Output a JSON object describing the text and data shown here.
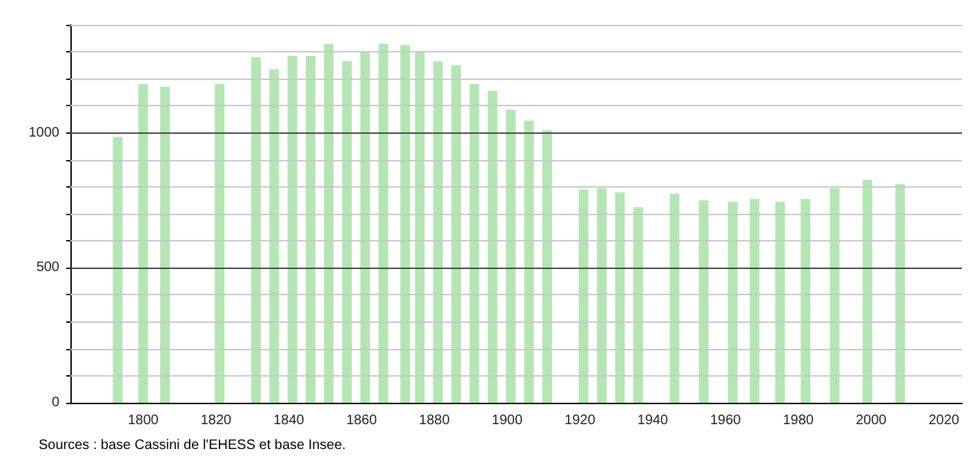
{
  "chart_data": {
    "type": "bar",
    "color": "#b3e6b3",
    "x": [
      1793,
      1800,
      1806,
      1821,
      1831,
      1836,
      1841,
      1846,
      1851,
      1856,
      1861,
      1866,
      1872,
      1876,
      1881,
      1886,
      1891,
      1896,
      1901,
      1906,
      1911,
      1921,
      1926,
      1931,
      1936,
      1946,
      1954,
      1962,
      1968,
      1975,
      1982,
      1990,
      1999,
      2008
    ],
    "values": [
      985,
      1180,
      1170,
      1180,
      1280,
      1235,
      1285,
      1285,
      1330,
      1265,
      1300,
      1330,
      1325,
      1300,
      1265,
      1250,
      1180,
      1155,
      1085,
      1045,
      1010,
      790,
      795,
      780,
      725,
      775,
      750,
      745,
      755,
      745,
      755,
      795,
      825,
      810
    ],
    "xlim": [
      1780,
      2025
    ],
    "xticks": [
      1800,
      1820,
      1840,
      1860,
      1880,
      1900,
      1920,
      1940,
      1960,
      1980,
      2000,
      2020
    ],
    "ylim": [
      0,
      1400
    ],
    "yticks": [
      0,
      {
        "value": 100,
        "label": null
      },
      {
        "value": 200,
        "label": null
      },
      {
        "value": 300,
        "label": null
      },
      {
        "value": 400,
        "label": null
      },
      500,
      {
        "value": 600,
        "label": null
      },
      {
        "value": 700,
        "label": null
      },
      {
        "value": 800,
        "label": null
      },
      {
        "value": 900,
        "label": null
      },
      1000,
      {
        "value": 1100,
        "label": null
      },
      {
        "value": 1200,
        "label": null
      },
      {
        "value": 1300,
        "label": null
      },
      {
        "value": 1400,
        "label": null
      }
    ],
    "grid": "y",
    "annotations": [
      "Sources : base Cassini de l'EHESS et base Insee."
    ]
  }
}
